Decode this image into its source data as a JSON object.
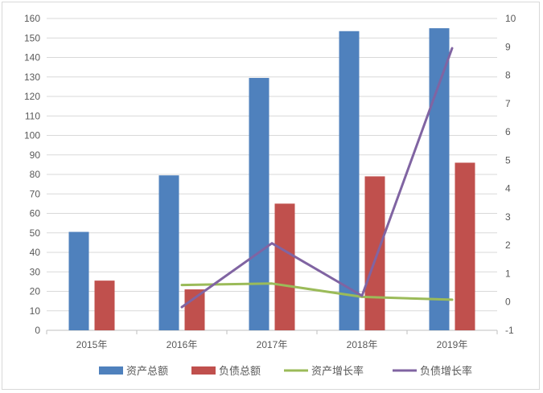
{
  "chart_data": {
    "type": "bar",
    "categories": [
      "2015年",
      "2016年",
      "2017年",
      "2018年",
      "2019年"
    ],
    "series": [
      {
        "name": "资产总额",
        "kind": "bar",
        "axis": "left",
        "color": "#4f81bd",
        "values": [
          50.5,
          79.5,
          129.5,
          153.5,
          155
        ]
      },
      {
        "name": "负债总额",
        "kind": "bar",
        "axis": "left",
        "color": "#c0504d",
        "values": [
          25.5,
          21,
          65,
          79,
          86
        ]
      },
      {
        "name": "资产增长率",
        "kind": "line",
        "axis": "right",
        "color": "#9bbb59",
        "values": [
          null,
          0.6,
          0.65,
          0.18,
          0.08
        ]
      },
      {
        "name": "负债增长率",
        "kind": "line",
        "axis": "right",
        "color": "#8064a2",
        "values": [
          null,
          -0.18,
          2.07,
          0.22,
          8.95
        ]
      }
    ],
    "left_axis": {
      "min": 0,
      "max": 160,
      "step": 10,
      "ticks": [
        "0",
        "10",
        "20",
        "30",
        "40",
        "50",
        "60",
        "70",
        "80",
        "90",
        "100",
        "110",
        "120",
        "130",
        "140",
        "150",
        "160"
      ]
    },
    "right_axis": {
      "min": -1,
      "max": 10,
      "step": 1,
      "ticks": [
        "-1",
        "0",
        "1",
        "2",
        "3",
        "4",
        "5",
        "6",
        "7",
        "8",
        "9",
        "10"
      ]
    },
    "grid": true,
    "legend_position": "bottom"
  }
}
